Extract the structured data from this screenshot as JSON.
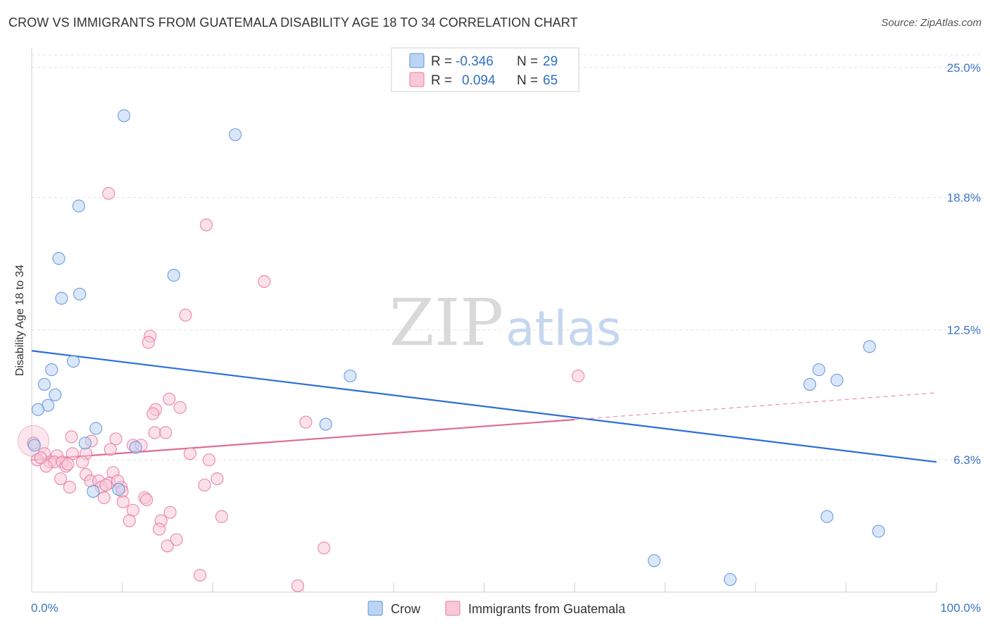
{
  "chart_data": {
    "type": "scatter",
    "title": "CROW VS IMMIGRANTS FROM GUATEMALA DISABILITY AGE 18 TO 34 CORRELATION CHART",
    "source": "Source: ZipAtlas.com",
    "xlabel": "",
    "ylabel": "Disability Age 18 to 34",
    "xlim": [
      0,
      100
    ],
    "ylim": [
      0,
      25.6
    ],
    "x_tick_labels": [
      "0.0%",
      "100.0%"
    ],
    "x_ticks": [
      0,
      10,
      20,
      30,
      40,
      50,
      60,
      70,
      80,
      90,
      100
    ],
    "y_ticks": [
      {
        "value": 6.3,
        "label": "6.3%"
      },
      {
        "value": 12.5,
        "label": "12.5%"
      },
      {
        "value": 18.8,
        "label": "18.8%"
      },
      {
        "value": 25.0,
        "label": "25.0%"
      }
    ],
    "grid": true,
    "legend_position": "top-center",
    "watermark": {
      "part1": "ZIP",
      "part2": "atlas"
    },
    "series": [
      {
        "name": "Crow",
        "color": "#5b93dc",
        "fill": "#bcd4f3",
        "stats": {
          "r_label": "R =",
          "r": "-0.346",
          "n_label": "N =",
          "n": "29"
        },
        "trend": {
          "x0": 0,
          "y0": 11.5,
          "x1": 100,
          "y1": 6.2,
          "solid_until": 100
        },
        "points": [
          [
            10.2,
            22.7
          ],
          [
            22.5,
            21.8
          ],
          [
            5.2,
            18.4
          ],
          [
            3.0,
            15.9
          ],
          [
            15.7,
            15.1
          ],
          [
            5.3,
            14.2
          ],
          [
            3.3,
            14.0
          ],
          [
            4.6,
            11.0
          ],
          [
            2.2,
            10.6
          ],
          [
            1.4,
            9.9
          ],
          [
            2.6,
            9.4
          ],
          [
            1.8,
            8.9
          ],
          [
            0.7,
            8.7
          ],
          [
            7.1,
            7.8
          ],
          [
            5.9,
            7.1
          ],
          [
            11.5,
            6.9
          ],
          [
            0.3,
            7.0
          ],
          [
            6.8,
            4.8
          ],
          [
            9.6,
            4.9
          ],
          [
            35.2,
            10.3
          ],
          [
            32.5,
            8.0
          ],
          [
            87.0,
            10.6
          ],
          [
            86.0,
            9.9
          ],
          [
            89.0,
            10.1
          ],
          [
            92.6,
            11.7
          ],
          [
            87.9,
            3.6
          ],
          [
            93.6,
            2.9
          ],
          [
            68.8,
            1.5
          ],
          [
            77.2,
            0.6
          ]
        ]
      },
      {
        "name": "Immigrants from Guatemala",
        "color": "#e87aa0",
        "fill": "#f8c8d8",
        "stats": {
          "r_label": "R =",
          "r": "0.094",
          "n_label": "N =",
          "n": "65"
        },
        "trend": {
          "x0": 0,
          "y0": 6.3,
          "x1": 100,
          "y1": 9.5,
          "solid_until": 60
        },
        "points": [
          [
            8.5,
            19.0
          ],
          [
            19.3,
            17.5
          ],
          [
            25.7,
            14.8
          ],
          [
            17.0,
            13.2
          ],
          [
            13.1,
            12.2
          ],
          [
            12.9,
            11.9
          ],
          [
            60.4,
            10.3
          ],
          [
            15.2,
            9.2
          ],
          [
            16.4,
            8.8
          ],
          [
            13.7,
            8.7
          ],
          [
            13.4,
            8.5
          ],
          [
            30.3,
            8.1
          ],
          [
            13.6,
            7.6
          ],
          [
            14.8,
            7.6
          ],
          [
            4.4,
            7.4
          ],
          [
            9.3,
            7.3
          ],
          [
            6.6,
            7.2
          ],
          [
            11.2,
            7.0
          ],
          [
            12.1,
            7.0
          ],
          [
            8.7,
            6.8
          ],
          [
            17.5,
            6.6
          ],
          [
            1.4,
            6.6
          ],
          [
            4.5,
            6.6
          ],
          [
            6.0,
            6.6
          ],
          [
            2.8,
            6.5
          ],
          [
            0.6,
            6.3
          ],
          [
            2.0,
            6.2
          ],
          [
            2.5,
            6.2
          ],
          [
            3.4,
            6.2
          ],
          [
            5.6,
            6.2
          ],
          [
            19.6,
            6.3
          ],
          [
            1.6,
            6.0
          ],
          [
            3.8,
            6.0
          ],
          [
            0.2,
            7.1
          ],
          [
            9.0,
            5.7
          ],
          [
            6.0,
            5.6
          ],
          [
            3.2,
            5.4
          ],
          [
            6.5,
            5.3
          ],
          [
            7.4,
            5.3
          ],
          [
            20.5,
            5.4
          ],
          [
            8.6,
            5.2
          ],
          [
            7.7,
            5.0
          ],
          [
            8.2,
            5.1
          ],
          [
            19.1,
            5.1
          ],
          [
            4.2,
            5.0
          ],
          [
            9.9,
            5.0
          ],
          [
            10.0,
            4.8
          ],
          [
            8.0,
            4.5
          ],
          [
            10.1,
            4.3
          ],
          [
            12.5,
            4.5
          ],
          [
            12.7,
            4.4
          ],
          [
            11.2,
            3.9
          ],
          [
            15.3,
            3.8
          ],
          [
            21.0,
            3.6
          ],
          [
            10.8,
            3.4
          ],
          [
            14.3,
            3.4
          ],
          [
            14.1,
            3.0
          ],
          [
            16.0,
            2.5
          ],
          [
            15.0,
            2.2
          ],
          [
            32.3,
            2.1
          ],
          [
            18.6,
            0.8
          ],
          [
            29.4,
            0.3
          ],
          [
            9.5,
            5.3
          ],
          [
            4.0,
            6.1
          ],
          [
            1.0,
            6.4
          ]
        ]
      }
    ]
  },
  "bottom_legend": [
    "Crow",
    "Immigrants from Guatemala"
  ]
}
